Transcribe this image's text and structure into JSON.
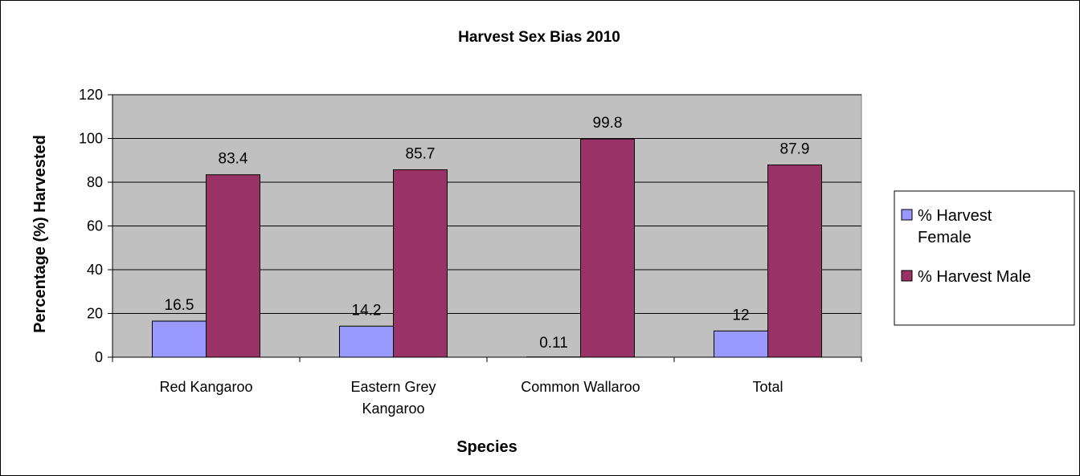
{
  "chart_data": {
    "type": "bar",
    "title": "Harvest Sex Bias 2010",
    "xlabel": "Species",
    "ylabel": "Percentage (%) Harvested",
    "categories": [
      [
        "Red Kangaroo"
      ],
      [
        "Eastern Grey",
        "Kangaroo"
      ],
      [
        "Common Wallaroo"
      ],
      [
        "Total"
      ]
    ],
    "series": [
      {
        "name": [
          "% Harvest",
          "Female"
        ],
        "color": "#9999ff",
        "values": [
          16.5,
          14.2,
          0.11,
          12
        ],
        "labels": [
          "16.5",
          "14.2",
          "0.11",
          "12"
        ]
      },
      {
        "name": [
          "% Harvest Male"
        ],
        "color": "#993366",
        "values": [
          83.4,
          85.7,
          99.8,
          87.9
        ],
        "labels": [
          "83.4",
          "85.7",
          "99.8",
          "87.9"
        ]
      }
    ],
    "ylim": [
      0,
      120
    ],
    "yticks": [
      "0",
      "20",
      "40",
      "60",
      "80",
      "100",
      "120"
    ],
    "plot_background": "#c0c0c0",
    "grid": true,
    "legend_position": "right"
  }
}
